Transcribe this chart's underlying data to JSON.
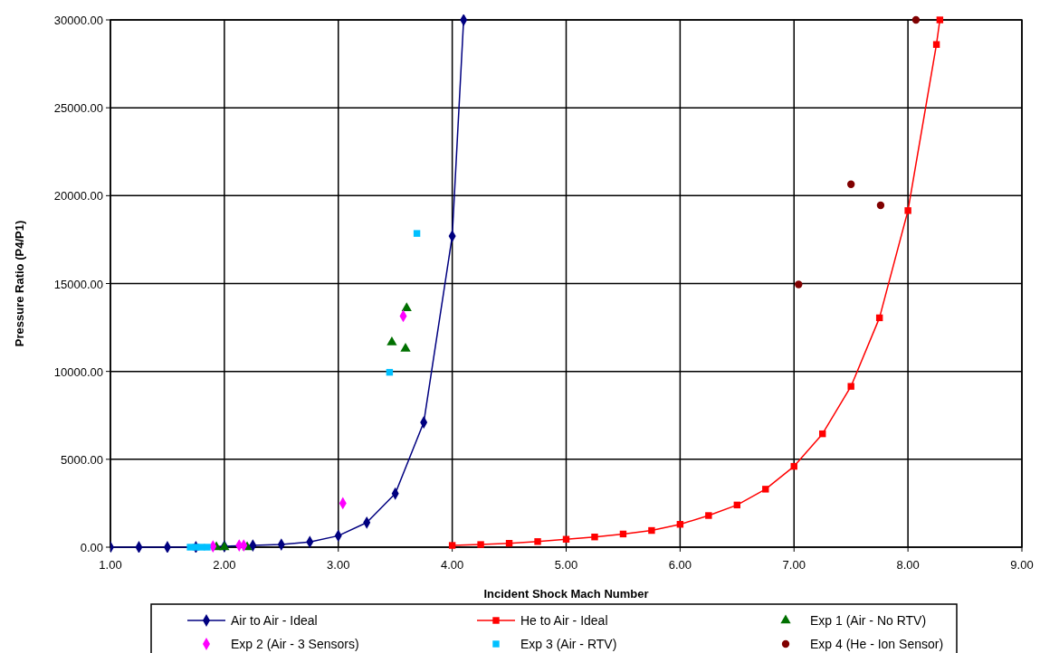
{
  "chart_data": {
    "type": "line",
    "xlabel": "Incident Shock Mach Number",
    "ylabel": "Pressure Ratio (P4/P1)",
    "xlim": [
      1,
      9
    ],
    "xticks": [
      {
        "value": 1,
        "label": "1.00"
      },
      {
        "value": 2,
        "label": "2.00"
      },
      {
        "value": 3,
        "label": "3.00"
      },
      {
        "value": 4,
        "label": "4.00"
      },
      {
        "value": 5,
        "label": "5.00"
      },
      {
        "value": 6,
        "label": "6.00"
      },
      {
        "value": 7,
        "label": "7.00"
      },
      {
        "value": 8,
        "label": "8.00"
      },
      {
        "value": 9,
        "label": "9.00"
      }
    ],
    "ylim": [
      0,
      30000
    ],
    "yticks": [
      {
        "value": 0,
        "label": "0.00"
      },
      {
        "value": 5000,
        "label": "5000.00"
      },
      {
        "value": 10000,
        "label": "10000.00"
      },
      {
        "value": 15000,
        "label": "15000.00"
      },
      {
        "value": 20000,
        "label": "20000.00"
      },
      {
        "value": 25000,
        "label": "25000.00"
      },
      {
        "value": 30000,
        "label": "30000.00"
      }
    ],
    "grid": true,
    "legend": "bottom",
    "series": [
      {
        "name": "Air to Air - Ideal",
        "marker": "diamond",
        "color": "#000080",
        "x": [
          1,
          1.25,
          1.5,
          1.75,
          2,
          2.25,
          2.5,
          2.75,
          3,
          3.25,
          3.5,
          3.75,
          4,
          4.1
        ],
        "values": [
          0,
          0,
          0,
          0,
          50,
          100,
          150,
          300,
          650,
          1400,
          3050,
          7100,
          17700,
          30000
        ]
      },
      {
        "name": "He to Air - Ideal",
        "marker": "square",
        "color": "#ff0000",
        "x": [
          4,
          4.25,
          4.5,
          4.75,
          5,
          5.25,
          5.5,
          5.75,
          6,
          6.25,
          6.5,
          6.75,
          7,
          7.25,
          7.5,
          7.75,
          8,
          8.25,
          8.28
        ],
        "values": [
          100,
          150,
          220,
          320,
          450,
          580,
          750,
          950,
          1300,
          1800,
          2400,
          3300,
          4600,
          6450,
          9150,
          13050,
          19150,
          28600,
          30000
        ]
      },
      {
        "name": "Exp 1 (Air - No RTV)",
        "type": "scatter",
        "marker": "triangle",
        "color": "#007000",
        "x": [
          1.93,
          2.0,
          2.2,
          3.47,
          3.59,
          3.6
        ],
        "values": [
          0,
          0,
          0,
          11650,
          11300,
          13600
        ]
      },
      {
        "name": "Exp 2 (Air - 3 Sensors)",
        "type": "scatter",
        "marker": "diamond",
        "color": "#ff00ff",
        "x": [
          1.9,
          2.13,
          2.17,
          3.04,
          3.57
        ],
        "values": [
          50,
          100,
          100,
          2500,
          13150
        ]
      },
      {
        "name": "Exp 3 (Air - RTV)",
        "type": "scatter",
        "marker": "square",
        "color": "#00c0ff",
        "x": [
          1.7,
          1.75,
          1.8,
          1.85,
          3.45,
          3.69
        ],
        "values": [
          0,
          0,
          0,
          0,
          9950,
          17850
        ]
      },
      {
        "name": "Exp 4 (He - Ion Sensor)",
        "type": "scatter",
        "marker": "circle",
        "color": "#800000",
        "x": [
          7.04,
          7.5,
          7.76,
          8.07
        ],
        "values": [
          14950,
          20650,
          19450,
          30000
        ]
      }
    ]
  }
}
